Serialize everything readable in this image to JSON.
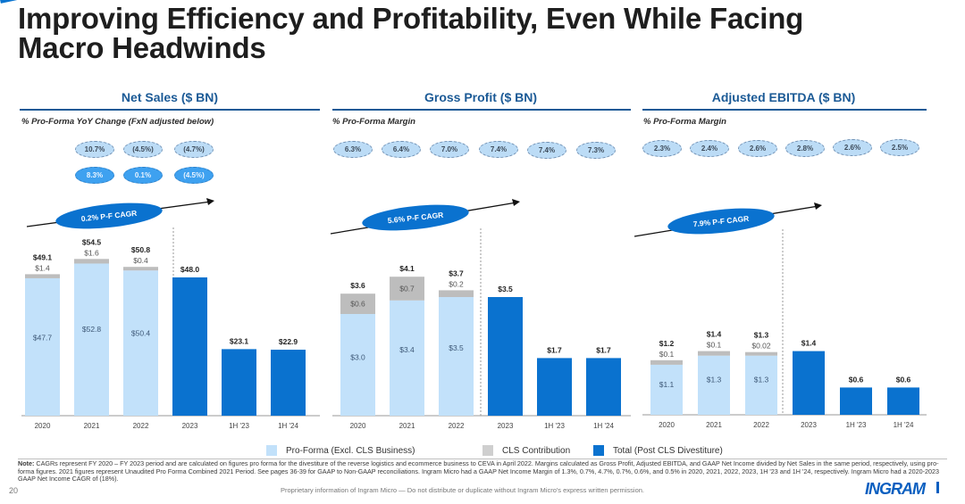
{
  "title_line1": "Improving Efficiency and Profitability, Even While Facing",
  "title_line2": "Macro Headwinds",
  "colors": {
    "pro_forma": "#c2e1fa",
    "cls": "#bdbdbd",
    "total": "#0a72cf",
    "heading": "#1b5a96"
  },
  "legend": [
    {
      "label": "Pro-Forma (Excl. CLS Business)",
      "color": "#c2e1fa"
    },
    {
      "label": "CLS Contribution",
      "color": "#cfcfcf"
    },
    {
      "label": "Total (Post CLS Divestiture)",
      "color": "#0a72cf"
    }
  ],
  "chart_data": [
    {
      "type": "bar",
      "title": "Net Sales ($ BN)",
      "subtitle": "% Pro-Forma YoY Change (FxN adjusted below)",
      "categories": [
        "2020",
        "2021",
        "2022",
        "2023",
        "1H '23",
        "1H '24"
      ],
      "series": [
        {
          "name": "Pro-Forma (Excl. CLS Business)",
          "values": [
            47.7,
            52.8,
            50.4,
            null,
            null,
            null
          ],
          "labels": [
            "$47.7",
            "$52.8",
            "$50.4",
            "",
            "",
            ""
          ]
        },
        {
          "name": "CLS Contribution",
          "values": [
            1.4,
            1.6,
            0.4,
            null,
            null,
            null
          ],
          "labels": [
            "$1.4",
            "$1.6",
            "$0.4",
            "",
            "",
            ""
          ]
        },
        {
          "name": "Total (Post CLS Divestiture)",
          "values": [
            null,
            null,
            null,
            48.0,
            23.1,
            22.9
          ]
        }
      ],
      "totals": [
        "$49.1",
        "$54.5",
        "$50.8",
        "$48.0",
        "$23.1",
        "$22.9"
      ],
      "yoy_change": [
        "10.7%",
        "(4.5%)",
        "(4.7%)"
      ],
      "yoy_fxn_adjusted": [
        "8.3%",
        "0.1%",
        "(4.5%)"
      ],
      "cagr_label": "0.2% P-F CAGR",
      "ylim": [
        0,
        60
      ]
    },
    {
      "type": "bar",
      "title": "Gross Profit ($ BN)",
      "subtitle": "% Pro-Forma Margin",
      "categories": [
        "2020",
        "2021",
        "2022",
        "2023",
        "1H '23",
        "1H '24"
      ],
      "series": [
        {
          "name": "Pro-Forma (Excl. CLS Business)",
          "values": [
            3.0,
            3.4,
            3.5,
            null,
            null,
            null
          ],
          "labels": [
            "$3.0",
            "$3.4",
            "$3.5",
            "",
            "",
            ""
          ]
        },
        {
          "name": "CLS Contribution",
          "values": [
            0.6,
            0.7,
            0.2,
            null,
            null,
            null
          ],
          "labels": [
            "$0.6",
            "$0.7",
            "$0.2",
            "",
            "",
            ""
          ]
        },
        {
          "name": "Total (Post CLS Divestiture)",
          "values": [
            null,
            null,
            null,
            3.5,
            1.7,
            1.7
          ]
        }
      ],
      "totals": [
        "$3.6",
        "$4.1",
        "$3.7",
        "$3.5",
        "$1.7",
        "$1.7"
      ],
      "margins": [
        "6.3%",
        "6.4%",
        "7.0%",
        "7.4%",
        "7.4%",
        "7.3%"
      ],
      "cagr_label": "5.6% P-F CAGR",
      "ylim": [
        0,
        4.5
      ]
    },
    {
      "type": "bar",
      "title": "Adjusted EBITDA ($ BN)",
      "subtitle": "% Pro-Forma Margin",
      "categories": [
        "2020",
        "2021",
        "2022",
        "2023",
        "1H '23",
        "1H '24"
      ],
      "series": [
        {
          "name": "Pro-Forma (Excl. CLS Business)",
          "values": [
            1.1,
            1.3,
            1.3,
            null,
            null,
            null
          ],
          "labels": [
            "$1.1",
            "$1.3",
            "$1.3",
            "",
            "",
            ""
          ]
        },
        {
          "name": "CLS Contribution",
          "values": [
            0.1,
            0.1,
            0.02,
            null,
            null,
            null
          ],
          "labels": [
            "$0.1",
            "$0.1",
            "$0.02",
            "",
            "",
            ""
          ]
        },
        {
          "name": "Total (Post CLS Divestiture)",
          "values": [
            null,
            null,
            null,
            1.4,
            0.6,
            0.6
          ]
        }
      ],
      "totals": [
        "$1.2",
        "$1.4",
        "$1.3",
        "$1.4",
        "$0.6",
        "$0.6"
      ],
      "margins": [
        "2.3%",
        "2.4%",
        "2.6%",
        "2.8%",
        "2.6%",
        "2.5%"
      ],
      "cagr_label": "7.9% P-F CAGR",
      "ylim": [
        0,
        2.0
      ]
    }
  ],
  "note_label": "Note:",
  "note_text": " CAGRs represent FY 2020 – FY 2023 period and are calculated on figures pro forma for the divestiture of the reverse logistics and ecommerce business to CEVA in April 2022. Margins calculated as Gross Profit, Adjusted EBITDA, and GAAP Net Income divided by Net Sales in the same period, respectively, using pro-forma figures. 2021 figures represent Unaudited Pro Forma Combined 2021 Period. See pages 36-39 for GAAP to Non-GAAP reconciliations. Ingram Micro had a GAAP Net Income Margin of 1.3%, 0.7%, 4.7%, 0.7%, 0.6%, and 0.5% in 2020, 2021, 2022, 2023, 1H '23 and 1H '24, respectively. Ingram Micro had a 2020-2023 GAAP Net Income CAGR of (18%).",
  "page_number": "20",
  "footer": "Proprietary information of Ingram Micro — Do not distribute or duplicate without Ingram Micro's express written permission.",
  "logo_text": "INGRAM"
}
